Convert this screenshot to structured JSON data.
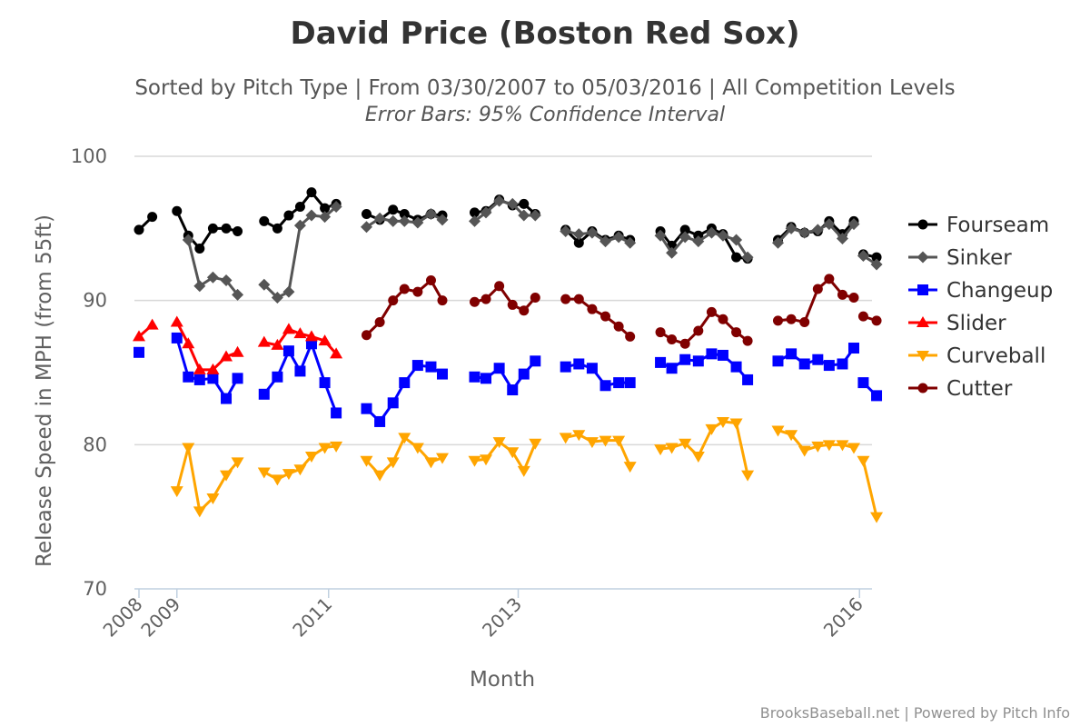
{
  "chart_data": {
    "type": "line",
    "title": "David Price (Boston Red Sox)",
    "subtitle": "Sorted by Pitch Type | From 03/30/2007 to 05/03/2016 | All Competition Levels",
    "subtitle2": "Error Bars: 95% Confidence Interval",
    "xlabel": "Month",
    "ylabel": "Release Speed in MPH (from 55ft)",
    "ylim": [
      70,
      100
    ],
    "yticks": [
      70,
      80,
      90,
      100
    ],
    "xticks": [
      {
        "label": "2008",
        "x": 0
      },
      {
        "label": "2009",
        "x": 1
      },
      {
        "label": "2011",
        "x": 5
      },
      {
        "label": "2013",
        "x": 10
      },
      {
        "label": "2016",
        "x": 19
      }
    ],
    "legend_position": "right",
    "grid": true,
    "credits": "BrooksBaseball.net | Powered by Pitch Info",
    "series": [
      {
        "name": "Fourseam",
        "color": "#000000",
        "marker": "circle",
        "segments": [
          [
            [
              0.0,
              94.9
            ],
            [
              0.35,
              95.8
            ]
          ],
          [
            [
              1.0,
              96.2
            ],
            [
              1.3,
              94.5
            ],
            [
              1.6,
              93.6
            ],
            [
              1.95,
              95.0
            ],
            [
              2.3,
              95.0
            ],
            [
              2.6,
              94.8
            ]
          ],
          [
            [
              3.3,
              95.5
            ],
            [
              3.65,
              95.0
            ],
            [
              3.95,
              95.9
            ],
            [
              4.25,
              96.5
            ],
            [
              4.55,
              97.5
            ],
            [
              4.9,
              96.4
            ],
            [
              5.2,
              96.7
            ]
          ],
          [
            [
              6.0,
              96.0
            ],
            [
              6.35,
              95.6
            ],
            [
              6.7,
              96.3
            ],
            [
              7.0,
              96.0
            ],
            [
              7.35,
              95.6
            ],
            [
              7.7,
              96.0
            ],
            [
              8.0,
              95.9
            ]
          ],
          [
            [
              8.85,
              96.1
            ],
            [
              9.15,
              96.2
            ],
            [
              9.5,
              97.0
            ],
            [
              9.85,
              96.6
            ],
            [
              10.15,
              96.7
            ],
            [
              10.45,
              96.0
            ]
          ],
          [
            [
              11.25,
              94.9
            ],
            [
              11.6,
              94.0
            ],
            [
              11.95,
              94.8
            ],
            [
              12.3,
              94.2
            ],
            [
              12.65,
              94.5
            ],
            [
              12.95,
              94.2
            ]
          ],
          [
            [
              13.75,
              94.8
            ],
            [
              14.05,
              93.8
            ],
            [
              14.4,
              94.9
            ],
            [
              14.75,
              94.5
            ],
            [
              15.1,
              95.0
            ],
            [
              15.4,
              94.6
            ],
            [
              15.75,
              93.0
            ],
            [
              16.05,
              92.9
            ]
          ],
          [
            [
              16.85,
              94.2
            ],
            [
              17.2,
              95.1
            ],
            [
              17.55,
              94.7
            ],
            [
              17.9,
              94.8
            ],
            [
              18.2,
              95.5
            ],
            [
              18.55,
              94.6
            ],
            [
              18.85,
              95.5
            ]
          ],
          [
            [
              19.1,
              93.2
            ],
            [
              19.45,
              93.0
            ]
          ]
        ]
      },
      {
        "name": "Sinker",
        "color": "#555555",
        "marker": "diamond",
        "segments": [
          [
            [
              1.3,
              94.2
            ],
            [
              1.6,
              91.0
            ],
            [
              1.95,
              91.6
            ],
            [
              2.3,
              91.4
            ],
            [
              2.6,
              90.4
            ]
          ],
          [
            [
              3.3,
              91.1
            ],
            [
              3.65,
              90.2
            ],
            [
              3.95,
              90.6
            ],
            [
              4.25,
              95.2
            ],
            [
              4.55,
              95.9
            ],
            [
              4.9,
              95.8
            ],
            [
              5.2,
              96.5
            ]
          ],
          [
            [
              6.0,
              95.1
            ],
            [
              6.35,
              95.7
            ],
            [
              6.7,
              95.5
            ],
            [
              7.0,
              95.5
            ],
            [
              7.35,
              95.4
            ],
            [
              7.7,
              96.0
            ],
            [
              8.0,
              95.6
            ]
          ],
          [
            [
              8.85,
              95.5
            ],
            [
              9.15,
              96.1
            ],
            [
              9.5,
              96.9
            ],
            [
              9.85,
              96.7
            ],
            [
              10.15,
              95.9
            ],
            [
              10.45,
              95.9
            ]
          ],
          [
            [
              11.25,
              94.8
            ],
            [
              11.6,
              94.6
            ],
            [
              11.95,
              94.7
            ],
            [
              12.3,
              94.1
            ],
            [
              12.65,
              94.4
            ],
            [
              12.95,
              94.0
            ]
          ],
          [
            [
              13.75,
              94.5
            ],
            [
              14.05,
              93.3
            ],
            [
              14.4,
              94.4
            ],
            [
              14.75,
              94.1
            ],
            [
              15.1,
              94.7
            ],
            [
              15.4,
              94.5
            ],
            [
              15.75,
              94.2
            ],
            [
              16.05,
              93.0
            ]
          ],
          [
            [
              16.85,
              94.0
            ],
            [
              17.2,
              95.0
            ],
            [
              17.55,
              94.7
            ],
            [
              17.9,
              94.9
            ],
            [
              18.2,
              95.3
            ],
            [
              18.55,
              94.3
            ],
            [
              18.85,
              95.3
            ]
          ],
          [
            [
              19.1,
              93.1
            ],
            [
              19.45,
              92.5
            ]
          ]
        ]
      },
      {
        "name": "Changeup",
        "color": "#0000ff",
        "marker": "square",
        "segments": [
          [
            [
              0.0,
              86.4
            ]
          ],
          [
            [
              1.0,
              87.4
            ],
            [
              1.3,
              84.7
            ],
            [
              1.6,
              84.5
            ],
            [
              1.95,
              84.6
            ],
            [
              2.3,
              83.2
            ],
            [
              2.6,
              84.6
            ]
          ],
          [
            [
              3.3,
              83.5
            ],
            [
              3.65,
              84.7
            ],
            [
              3.95,
              86.5
            ],
            [
              4.25,
              85.1
            ],
            [
              4.55,
              87.0
            ],
            [
              4.9,
              84.3
            ],
            [
              5.2,
              82.2
            ]
          ],
          [
            [
              6.0,
              82.5
            ],
            [
              6.35,
              81.6
            ],
            [
              6.7,
              82.9
            ],
            [
              7.0,
              84.3
            ],
            [
              7.35,
              85.5
            ],
            [
              7.7,
              85.4
            ],
            [
              8.0,
              84.9
            ]
          ],
          [
            [
              8.85,
              84.7
            ],
            [
              9.15,
              84.6
            ],
            [
              9.5,
              85.3
            ],
            [
              9.85,
              83.8
            ],
            [
              10.15,
              84.9
            ],
            [
              10.45,
              85.8
            ]
          ],
          [
            [
              11.25,
              85.4
            ],
            [
              11.6,
              85.6
            ],
            [
              11.95,
              85.3
            ],
            [
              12.3,
              84.1
            ],
            [
              12.65,
              84.3
            ],
            [
              12.95,
              84.3
            ]
          ],
          [
            [
              13.75,
              85.7
            ],
            [
              14.05,
              85.3
            ],
            [
              14.4,
              85.9
            ],
            [
              14.75,
              85.8
            ],
            [
              15.1,
              86.3
            ],
            [
              15.4,
              86.2
            ],
            [
              15.75,
              85.4
            ],
            [
              16.05,
              84.5
            ]
          ],
          [
            [
              16.85,
              85.8
            ],
            [
              17.2,
              86.3
            ],
            [
              17.55,
              85.6
            ],
            [
              17.9,
              85.9
            ],
            [
              18.2,
              85.5
            ],
            [
              18.55,
              85.6
            ],
            [
              18.85,
              86.7
            ]
          ],
          [
            [
              19.1,
              84.3
            ],
            [
              19.45,
              83.4
            ]
          ]
        ]
      },
      {
        "name": "Slider",
        "color": "#ff0000",
        "marker": "triangle",
        "segments": [
          [
            [
              0.0,
              87.5
            ],
            [
              0.35,
              88.3
            ]
          ],
          [
            [
              1.0,
              88.5
            ],
            [
              1.3,
              87.0
            ],
            [
              1.6,
              85.2
            ],
            [
              1.95,
              85.2
            ],
            [
              2.3,
              86.1
            ],
            [
              2.6,
              86.4
            ]
          ],
          [
            [
              3.3,
              87.1
            ],
            [
              3.65,
              86.9
            ],
            [
              3.95,
              88.0
            ],
            [
              4.25,
              87.7
            ],
            [
              4.55,
              87.5
            ],
            [
              4.9,
              87.2
            ],
            [
              5.2,
              86.3
            ]
          ]
        ]
      },
      {
        "name": "Curveball",
        "color": "#ffa500",
        "marker": "triangle-down",
        "segments": [
          [
            [
              1.0,
              76.8
            ],
            [
              1.3,
              79.8
            ],
            [
              1.6,
              75.4
            ],
            [
              1.95,
              76.3
            ],
            [
              2.3,
              77.9
            ],
            [
              2.6,
              78.8
            ]
          ],
          [
            [
              3.3,
              78.1
            ],
            [
              3.65,
              77.6
            ],
            [
              3.95,
              78.0
            ],
            [
              4.25,
              78.3
            ],
            [
              4.55,
              79.2
            ],
            [
              4.9,
              79.8
            ],
            [
              5.2,
              79.9
            ]
          ],
          [
            [
              6.0,
              78.9
            ],
            [
              6.35,
              77.9
            ],
            [
              6.7,
              78.8
            ],
            [
              7.0,
              80.5
            ],
            [
              7.35,
              79.8
            ],
            [
              7.7,
              78.8
            ],
            [
              8.0,
              79.1
            ]
          ],
          [
            [
              8.85,
              78.9
            ],
            [
              9.15,
              79.0
            ],
            [
              9.5,
              80.2
            ],
            [
              9.85,
              79.5
            ],
            [
              10.15,
              78.2
            ],
            [
              10.45,
              80.1
            ]
          ],
          [
            [
              11.25,
              80.5
            ],
            [
              11.6,
              80.7
            ],
            [
              11.95,
              80.2
            ],
            [
              12.3,
              80.3
            ],
            [
              12.65,
              80.3
            ],
            [
              12.95,
              78.5
            ]
          ],
          [
            [
              13.75,
              79.7
            ],
            [
              14.05,
              79.8
            ],
            [
              14.4,
              80.1
            ],
            [
              14.75,
              79.2
            ],
            [
              15.1,
              81.1
            ],
            [
              15.4,
              81.6
            ],
            [
              15.75,
              81.5
            ],
            [
              16.05,
              77.9
            ]
          ],
          [
            [
              16.85,
              81.0
            ],
            [
              17.2,
              80.7
            ],
            [
              17.55,
              79.6
            ],
            [
              17.9,
              79.9
            ],
            [
              18.2,
              80.0
            ],
            [
              18.55,
              80.0
            ],
            [
              18.85,
              79.8
            ]
          ],
          [
            [
              19.1,
              78.9
            ],
            [
              19.45,
              75.0
            ]
          ]
        ]
      },
      {
        "name": "Cutter",
        "color": "#800000",
        "marker": "circle",
        "segments": [
          [
            [
              6.0,
              87.6
            ],
            [
              6.35,
              88.5
            ],
            [
              6.7,
              90.0
            ],
            [
              7.0,
              90.8
            ],
            [
              7.35,
              90.6
            ],
            [
              7.7,
              91.4
            ],
            [
              8.0,
              90.0
            ]
          ],
          [
            [
              8.85,
              89.9
            ],
            [
              9.15,
              90.1
            ],
            [
              9.5,
              91.0
            ],
            [
              9.85,
              89.7
            ],
            [
              10.15,
              89.3
            ],
            [
              10.45,
              90.2
            ]
          ],
          [
            [
              11.25,
              90.1
            ],
            [
              11.6,
              90.1
            ],
            [
              11.95,
              89.4
            ],
            [
              12.3,
              88.9
            ],
            [
              12.65,
              88.2
            ],
            [
              12.95,
              87.5
            ]
          ],
          [
            [
              13.75,
              87.8
            ],
            [
              14.05,
              87.3
            ],
            [
              14.4,
              87.0
            ],
            [
              14.75,
              87.9
            ],
            [
              15.1,
              89.2
            ],
            [
              15.4,
              88.7
            ],
            [
              15.75,
              87.8
            ],
            [
              16.05,
              87.2
            ]
          ],
          [
            [
              16.85,
              88.6
            ],
            [
              17.2,
              88.7
            ],
            [
              17.55,
              88.5
            ],
            [
              17.9,
              90.8
            ],
            [
              18.2,
              91.5
            ],
            [
              18.55,
              90.4
            ],
            [
              18.85,
              90.2
            ]
          ],
          [
            [
              19.1,
              88.9
            ],
            [
              19.45,
              88.6
            ]
          ]
        ]
      }
    ]
  }
}
